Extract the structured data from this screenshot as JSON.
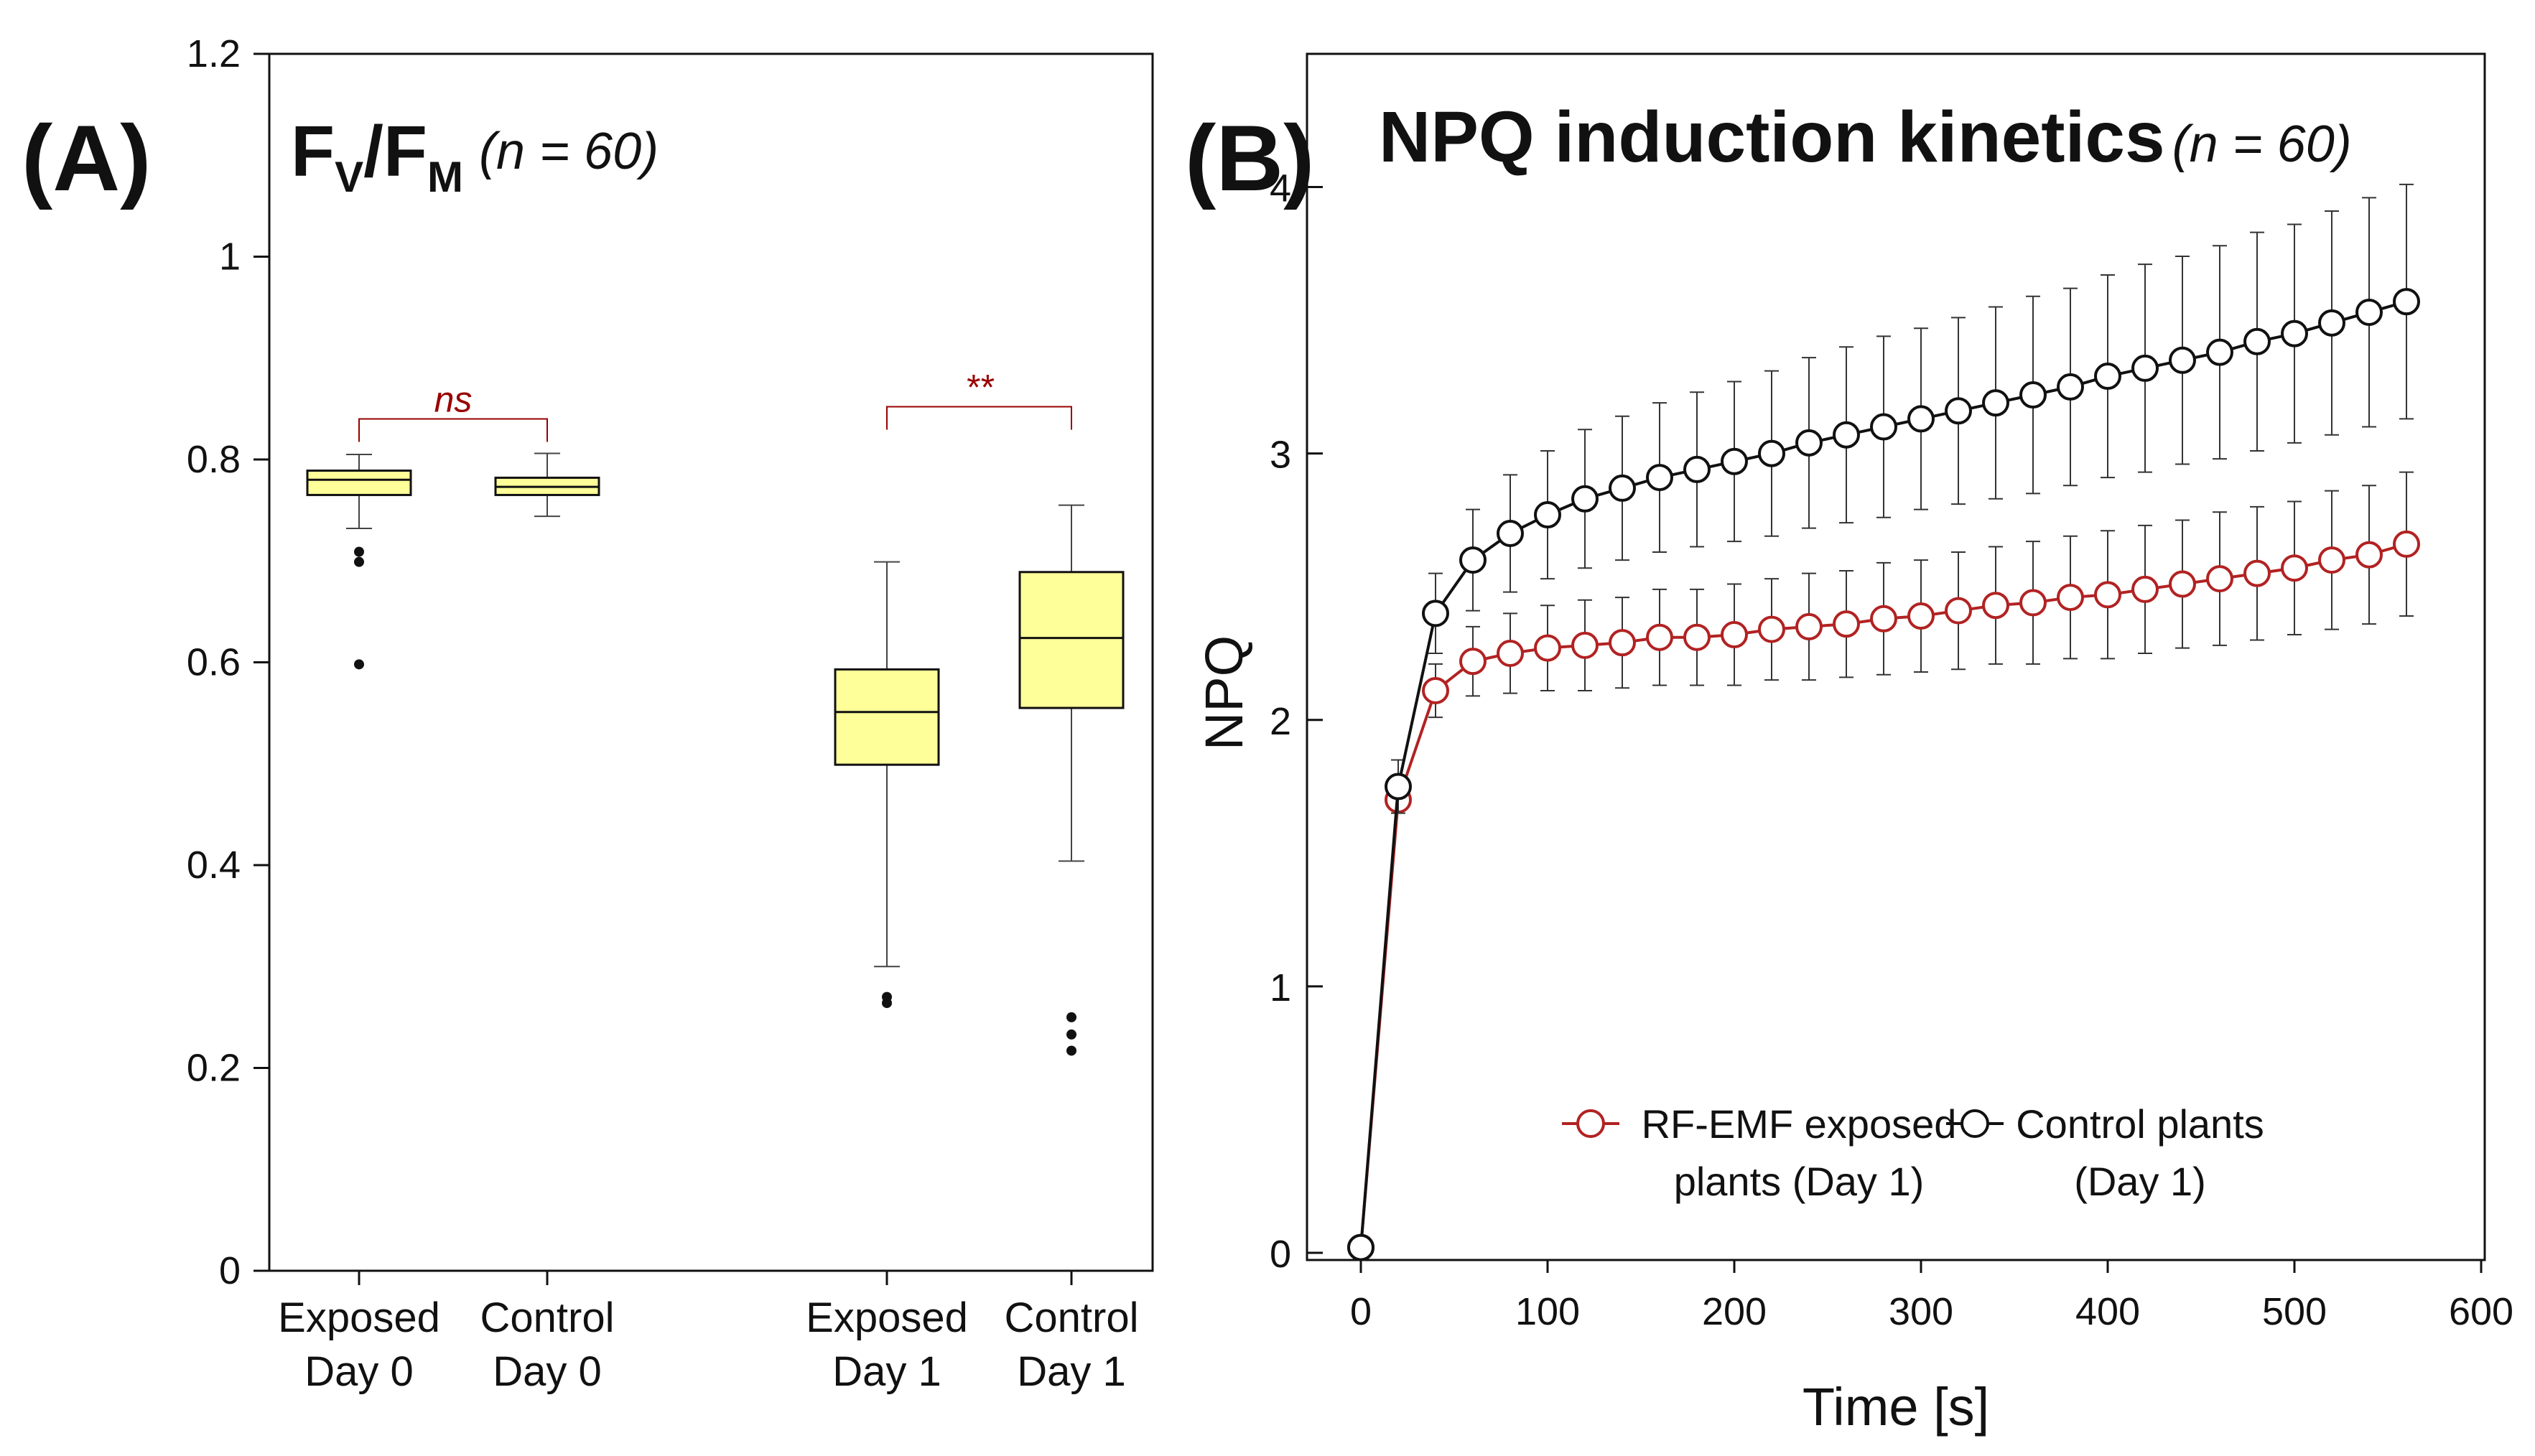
{
  "colors": {
    "box_fill": "#ffff99",
    "significance": "#990000",
    "exposed_series": "#b22222",
    "control_series": "#111111"
  },
  "chart_data": [
    {
      "type": "box",
      "panel_label": "(A)",
      "title_main": "F",
      "title_sub1": "V",
      "title_slash": "/F",
      "title_sub2": "M",
      "title_n": "(n = 60)",
      "ylim": [
        0,
        1.2
      ],
      "yticks": [
        "0",
        "0.2",
        "0.4",
        "0.6",
        "0.8",
        "1",
        "1.2"
      ],
      "categories": [
        {
          "line1": "Exposed",
          "line2": "Day 0"
        },
        {
          "line1": "Control",
          "line2": "Day 0"
        },
        {
          "line1": "Exposed",
          "line2": "Day 1"
        },
        {
          "line1": "Control",
          "line2": "Day 1"
        }
      ],
      "boxes": [
        {
          "whisker_low": 0.732,
          "q1": 0.765,
          "median": 0.78,
          "q3": 0.789,
          "whisker_high": 0.805,
          "outliers": [
            0.709,
            0.699,
            0.598
          ]
        },
        {
          "whisker_low": 0.744,
          "q1": 0.765,
          "median": 0.773,
          "q3": 0.782,
          "whisker_high": 0.806,
          "outliers": []
        },
        {
          "whisker_low": 0.3,
          "q1": 0.499,
          "median": 0.551,
          "q3": 0.593,
          "whisker_high": 0.699,
          "outliers": [
            0.27,
            0.264
          ]
        },
        {
          "whisker_low": 0.404,
          "q1": 0.555,
          "median": 0.624,
          "q3": 0.689,
          "whisker_high": 0.755,
          "outliers": [
            0.25,
            0.233,
            0.217
          ]
        }
      ],
      "significance": [
        {
          "label": "ns",
          "from": 0,
          "to": 1,
          "level": 0.84
        },
        {
          "label": "**",
          "from": 2,
          "to": 3,
          "level": 0.852
        }
      ]
    },
    {
      "type": "line",
      "panel_label": "(B)",
      "title": "NPQ induction kinetics",
      "title_n": "(n = 60)",
      "xlabel": "Time [s]",
      "ylabel": "NPQ",
      "xlim": [
        0,
        600
      ],
      "ylim": [
        0,
        4.5
      ],
      "xticks": [
        "0",
        "100",
        "200",
        "300",
        "400",
        "500",
        "600"
      ],
      "yticks": [
        "0",
        "1",
        "2",
        "3",
        "4"
      ],
      "x": [
        0,
        20,
        40,
        60,
        80,
        100,
        120,
        140,
        160,
        180,
        200,
        220,
        240,
        260,
        280,
        300,
        320,
        340,
        360,
        380,
        400,
        420,
        440,
        460,
        480,
        500,
        520,
        540,
        560
      ],
      "series": [
        {
          "name": "RF-EMF exposed plants (Day 1)",
          "legend_line1": "RF-EMF exposed",
          "legend_line2": "plants (Day 1)",
          "values": [
            0.02,
            1.7,
            2.11,
            2.22,
            2.25,
            2.27,
            2.28,
            2.29,
            2.31,
            2.31,
            2.32,
            2.34,
            2.35,
            2.36,
            2.38,
            2.39,
            2.41,
            2.43,
            2.44,
            2.46,
            2.47,
            2.49,
            2.51,
            2.53,
            2.55,
            2.57,
            2.6,
            2.62,
            2.66
          ],
          "errors": [
            0.0,
            0.04,
            0.1,
            0.13,
            0.15,
            0.16,
            0.17,
            0.17,
            0.18,
            0.18,
            0.19,
            0.19,
            0.2,
            0.2,
            0.21,
            0.21,
            0.22,
            0.22,
            0.23,
            0.23,
            0.24,
            0.24,
            0.24,
            0.25,
            0.25,
            0.25,
            0.26,
            0.26,
            0.27
          ]
        },
        {
          "name": "Control plants (Day 1)",
          "legend_line1": "Control  plants",
          "legend_line2": "(Day 1)",
          "values": [
            0.02,
            1.75,
            2.4,
            2.6,
            2.7,
            2.77,
            2.83,
            2.87,
            2.91,
            2.94,
            2.97,
            3.0,
            3.04,
            3.07,
            3.1,
            3.13,
            3.16,
            3.19,
            3.22,
            3.25,
            3.29,
            3.32,
            3.35,
            3.38,
            3.42,
            3.45,
            3.49,
            3.53,
            3.57
          ],
          "errors": [
            0.0,
            0.1,
            0.15,
            0.19,
            0.22,
            0.24,
            0.26,
            0.27,
            0.28,
            0.29,
            0.3,
            0.31,
            0.32,
            0.33,
            0.34,
            0.34,
            0.35,
            0.36,
            0.37,
            0.37,
            0.38,
            0.39,
            0.39,
            0.4,
            0.41,
            0.41,
            0.42,
            0.43,
            0.44
          ]
        }
      ]
    }
  ]
}
